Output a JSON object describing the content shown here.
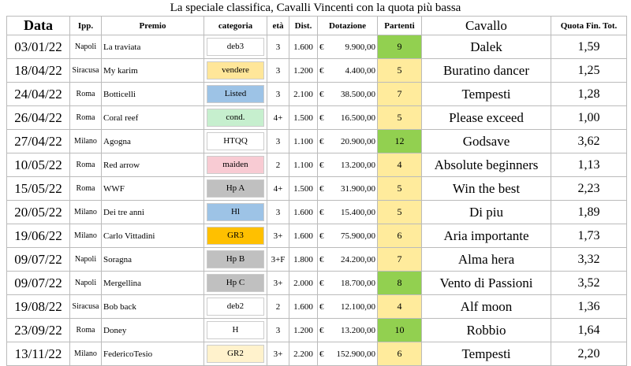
{
  "title": "La speciale classifica, Cavalli Vincenti con la quota più bassa",
  "table": {
    "header": [
      "Data",
      "Ipp.",
      "Premio",
      "categoria",
      "età",
      "Dist.",
      "Dotazione",
      "Partenti",
      "Cavallo",
      "Quota Fin. Tot."
    ],
    "rows": [
      {
        "data": "03/01/22",
        "ipp": "Napoli",
        "premio": "La traviata",
        "categoria": "deb3",
        "cat_color": "#ffffff",
        "eta": "3",
        "dist": "1.600",
        "currency": "€",
        "dotazione": "9.900,00",
        "partenti": "9",
        "part_color": "#92d050",
        "cavallo": "Dalek",
        "quota": "1,59"
      },
      {
        "data": "18/04/22",
        "ipp": "Siracusa",
        "premio": "My karim",
        "categoria": "vendere",
        "cat_color": "#ffe699",
        "eta": "3",
        "dist": "1.200",
        "currency": "€",
        "dotazione": "4.400,00",
        "partenti": "5",
        "part_color": "#ffeb9c",
        "cavallo": "Buratino dancer",
        "quota": "1,25"
      },
      {
        "data": "24/04/22",
        "ipp": "Roma",
        "premio": "Botticelli",
        "categoria": "Listed",
        "cat_color": "#9dc3e6",
        "eta": "3",
        "dist": "2.100",
        "currency": "€",
        "dotazione": "38.500,00",
        "partenti": "7",
        "part_color": "#ffeb9c",
        "cavallo": "Tempesti",
        "quota": "1,28"
      },
      {
        "data": "26/04/22",
        "ipp": "Roma",
        "premio": "Coral reef",
        "categoria": "cond.",
        "cat_color": "#c6efce",
        "eta": "4+",
        "dist": "1.500",
        "currency": "€",
        "dotazione": "16.500,00",
        "partenti": "5",
        "part_color": "#ffeb9c",
        "cavallo": "Please exceed",
        "quota": "1,00"
      },
      {
        "data": "27/04/22",
        "ipp": "Milano",
        "premio": "Agogna",
        "categoria": "HTQQ",
        "cat_color": "#ffffff",
        "eta": "3",
        "dist": "1.100",
        "currency": "€",
        "dotazione": "20.900,00",
        "partenti": "12",
        "part_color": "#92d050",
        "cavallo": "Godsave",
        "quota": "3,62"
      },
      {
        "data": "10/05/22",
        "ipp": "Roma",
        "premio": "Red arrow",
        "categoria": "maiden",
        "cat_color": "#f8cbd3",
        "eta": "2",
        "dist": "1.100",
        "currency": "€",
        "dotazione": "13.200,00",
        "partenti": "4",
        "part_color": "#ffeb9c",
        "cavallo": "Absolute beginners",
        "quota": "1,13"
      },
      {
        "data": "15/05/22",
        "ipp": "Roma",
        "premio": "WWF",
        "categoria": "Hp A",
        "cat_color": "#c0c0c0",
        "eta": "4+",
        "dist": "1.500",
        "currency": "€",
        "dotazione": "31.900,00",
        "partenti": "5",
        "part_color": "#ffeb9c",
        "cavallo": "Win the best",
        "quota": "2,23"
      },
      {
        "data": "20/05/22",
        "ipp": "Milano",
        "premio": "Dei tre anni",
        "categoria": "Hl",
        "cat_color": "#9dc3e6",
        "eta": "3",
        "dist": "1.600",
        "currency": "€",
        "dotazione": "15.400,00",
        "partenti": "5",
        "part_color": "#ffeb9c",
        "cavallo": "Di piu",
        "quota": "1,89"
      },
      {
        "data": "19/06/22",
        "ipp": "Milano",
        "premio": "Carlo Vittadini",
        "categoria": "GR3",
        "cat_color": "#ffc000",
        "eta": "3+",
        "dist": "1.600",
        "currency": "€",
        "dotazione": "75.900,00",
        "partenti": "6",
        "part_color": "#ffeb9c",
        "cavallo": "Aria importante",
        "quota": "1,73"
      },
      {
        "data": "09/07/22",
        "ipp": "Napoli",
        "premio": "Soragna",
        "categoria": "Hp B",
        "cat_color": "#c0c0c0",
        "eta": "3+F",
        "dist": "1.800",
        "currency": "€",
        "dotazione": "24.200,00",
        "partenti": "7",
        "part_color": "#ffeb9c",
        "cavallo": "Alma hera",
        "quota": "3,32"
      },
      {
        "data": "09/07/22",
        "ipp": "Napoli",
        "premio": "Mergellina",
        "categoria": "Hp C",
        "cat_color": "#c0c0c0",
        "eta": "3+",
        "dist": "2.000",
        "currency": "€",
        "dotazione": "18.700,00",
        "partenti": "8",
        "part_color": "#92d050",
        "cavallo": "Vento di Passioni",
        "quota": "3,52"
      },
      {
        "data": "19/08/22",
        "ipp": "Siracusa",
        "premio": "Bob back",
        "categoria": "deb2",
        "cat_color": "#ffffff",
        "eta": "2",
        "dist": "1.600",
        "currency": "€",
        "dotazione": "12.100,00",
        "partenti": "4",
        "part_color": "#ffeb9c",
        "cavallo": "Alf moon",
        "quota": "1,36"
      },
      {
        "data": "23/09/22",
        "ipp": "Roma",
        "premio": "Doney",
        "categoria": "H",
        "cat_color": "#ffffff",
        "eta": "3",
        "dist": "1.200",
        "currency": "€",
        "dotazione": "13.200,00",
        "partenti": "10",
        "part_color": "#92d050",
        "cavallo": "Robbio",
        "quota": "1,64"
      },
      {
        "data": "13/11/22",
        "ipp": "Milano",
        "premio": "FedericoTesio",
        "categoria": "GR2",
        "cat_color": "#fff2cc",
        "eta": "3+",
        "dist": "2.200",
        "currency": "€",
        "dotazione": "152.900,00",
        "partenti": "6",
        "part_color": "#ffeb9c",
        "cavallo": "Tempesti",
        "quota": "2,20"
      }
    ]
  }
}
